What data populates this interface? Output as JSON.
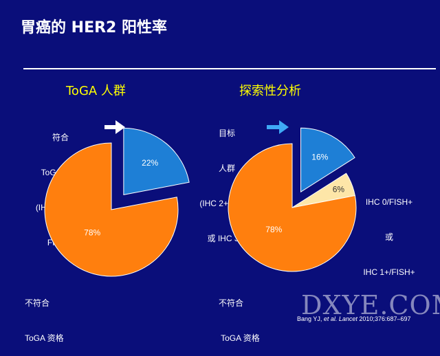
{
  "slide": {
    "title": "胃癌的 HER2 阳性率",
    "citation_prefix": "Bang YJ, ",
    "citation_italic": "et al. Lancet",
    "citation_suffix": " 2010;376:687–697",
    "watermark": "DXYE.COM"
  },
  "colors": {
    "background": "#0a0e7a",
    "orange": "#ff7f0e",
    "blue": "#1e7fd6",
    "cream": "#fde6a8",
    "arrow_white": "#ffffff",
    "arrow_blue": "#3fa9f5",
    "subtitle": "#ffff00"
  },
  "chart_data": [
    {
      "type": "pie",
      "title": "ToGA 人群",
      "slices": [
        {
          "name": "符合 ToGA 资格 (IHC 3+ 和/或 FISH+)",
          "value": 22,
          "label": "22%",
          "color": "#1e7fd6",
          "exploded": true
        },
        {
          "name": "不符合 ToGA 资格",
          "value": 78,
          "label": "78%",
          "color": "#ff7f0e",
          "exploded": false
        }
      ],
      "annotations": {
        "top": [
          "符合",
          "ToGA 资格",
          "(IHC 3+ 和/或",
          "FISH+)"
        ],
        "bottom": [
          "不符合",
          "ToGA 资格"
        ]
      }
    },
    {
      "type": "pie",
      "title": "探索性分析",
      "slices": [
        {
          "name": "目标人群 (IHC 2+/FISH+ 或 IHC 3+)",
          "value": 16,
          "label": "16%",
          "color": "#1e7fd6",
          "exploded": true
        },
        {
          "name": "IHC 0/FISH+ 或 IHC 1+/FISH+",
          "value": 6,
          "label": "6%",
          "color": "#fde6a8",
          "exploded": false
        },
        {
          "name": "不符合 ToGA 资格",
          "value": 78,
          "label": "78%",
          "color": "#ff7f0e",
          "exploded": false
        }
      ],
      "annotations": {
        "top": [
          "目标",
          "人群",
          "(IHC 2+/FISH+",
          "或 IHC 3+)"
        ],
        "side": [
          "IHC 0/FISH+",
          "或",
          "IHC 1+/FISH+"
        ],
        "bottom": [
          "不符合",
          " ToGA 资格"
        ]
      }
    }
  ]
}
